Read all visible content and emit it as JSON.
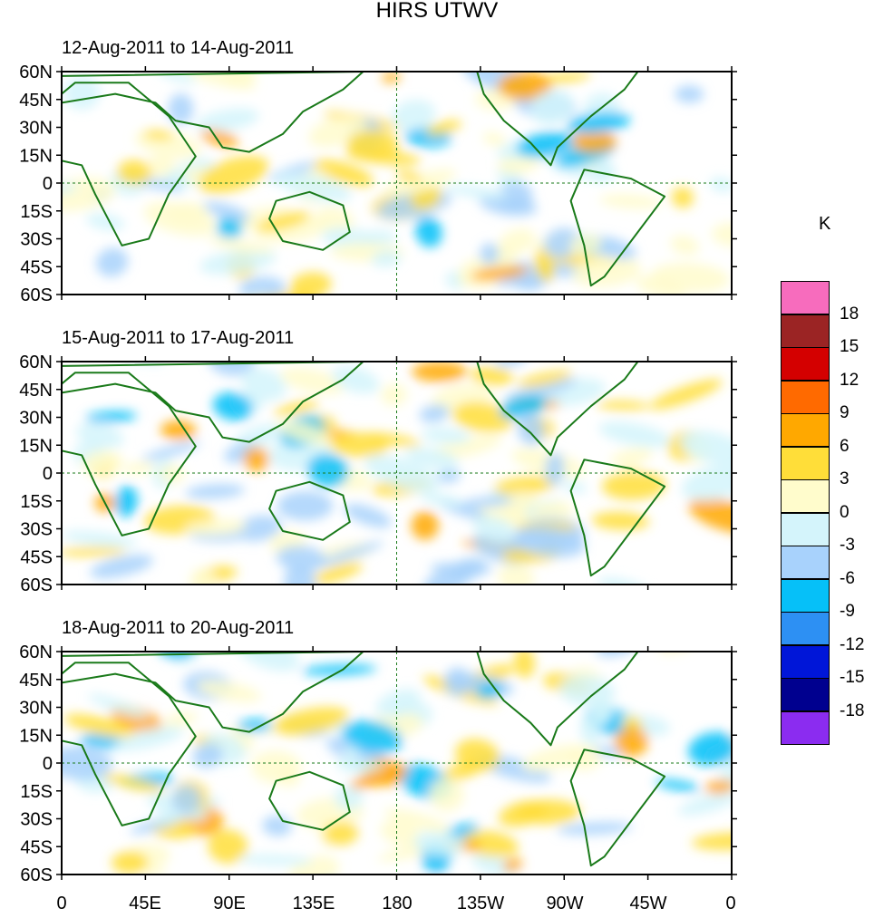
{
  "title": "HIRS UTWV",
  "panels": [
    {
      "date_range": "12-Aug-2011 to 14-Aug-2011"
    },
    {
      "date_range": "15-Aug-2011 to 17-Aug-2011"
    },
    {
      "date_range": "18-Aug-2011 to 20-Aug-2011"
    }
  ],
  "y_ticks": [
    "60N",
    "45N",
    "30N",
    "15N",
    "0",
    "15S",
    "30S",
    "45S",
    "60S"
  ],
  "x_ticks": [
    "0",
    "45E",
    "90E",
    "135E",
    "180",
    "135W",
    "90W",
    "45W",
    "0"
  ],
  "colorbar": {
    "unit": "K",
    "labels": [
      "18",
      "15",
      "12",
      "9",
      "6",
      "3",
      "0",
      "-3",
      "-6",
      "-9",
      "-12",
      "-15",
      "-18"
    ],
    "colors": [
      "#f76cbd",
      "#9b2424",
      "#d40000",
      "#ff6a00",
      "#ffa800",
      "#ffde39",
      "#fffccc",
      "#d4f4fb",
      "#a8d2fc",
      "#06c0f8",
      "#2d90f3",
      "#0016d8",
      "#00008f",
      "#8b2cf0"
    ]
  },
  "map_colors": {
    "land_outline": "#1a7a1a",
    "positive_light": "#fffccc",
    "positive_mid": "#ffde39",
    "positive_strong": "#ffa800",
    "negative_light": "#d4f4fb",
    "negative_mid": "#a8d2fc",
    "negative_strong": "#06c0f8"
  }
}
